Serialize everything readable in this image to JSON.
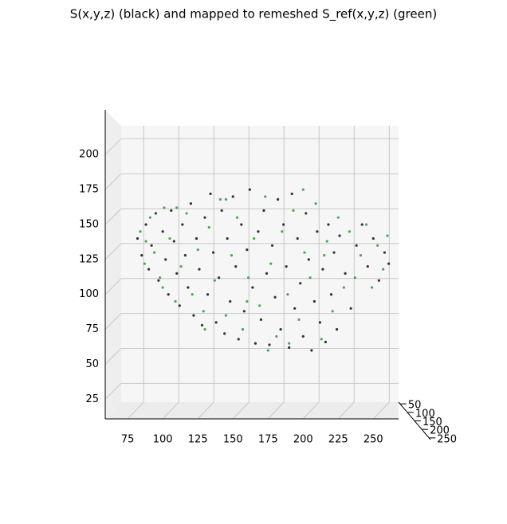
{
  "chart_data": {
    "type": "scatter3d",
    "title": "S(x,y,z) (black) and mapped to remeshed S_ref(x,y,z) (green)",
    "xlim": [
      59,
      268
    ],
    "xticks": [
      75,
      100,
      125,
      150,
      175,
      200,
      225,
      250
    ],
    "zlim": [
      11,
      232
    ],
    "zticks": [
      25,
      50,
      75,
      100,
      125,
      150,
      175,
      200
    ],
    "ylim": [
      40,
      260
    ],
    "yticks": [
      50,
      100,
      150,
      200,
      250
    ],
    "grid": true,
    "series": [
      {
        "color": "#111111",
        "x": [
          82,
          85,
          88,
          90,
          92,
          95,
          97,
          100,
          102,
          104,
          106,
          108,
          110,
          112,
          114,
          116,
          118,
          120,
          122,
          124,
          126,
          128,
          130,
          132,
          134,
          136,
          138,
          140,
          142,
          144,
          146,
          148,
          150,
          152,
          154,
          156,
          158,
          160,
          162,
          164,
          166,
          168,
          170,
          172,
          174,
          176,
          178,
          180,
          182,
          184,
          186,
          188,
          190,
          192,
          194,
          196,
          198,
          200,
          202,
          204,
          206,
          208,
          210,
          212,
          214,
          216,
          218,
          220,
          222,
          224,
          226,
          230,
          234,
          238,
          242,
          246,
          250,
          254,
          258,
          261
        ],
        "z": [
          140,
          128,
          150,
          118,
          135,
          158,
          110,
          145,
          125,
          100,
          160,
          138,
          115,
          92,
          150,
          128,
          105,
          165,
          85,
          140,
          118,
          78,
          155,
          100,
          172,
          130,
          80,
          112,
          160,
          72,
          140,
          95,
          170,
          120,
          68,
          150,
          88,
          132,
          175,
          105,
          65,
          145,
          82,
          160,
          115,
          64,
          135,
          98,
          168,
          75,
          150,
          120,
          62,
          172,
          90,
          140,
          108,
          70,
          158,
          125,
          60,
          95,
          145,
          80,
          118,
          66,
          150,
          100,
          130,
          75,
          142,
          115,
          90,
          135,
          150,
          120,
          140,
          110,
          130,
          122
        ]
      },
      {
        "color": "#2e9a2e",
        "x": [
          84,
          87,
          91,
          94,
          98,
          101,
          105,
          109,
          113,
          117,
          121,
          125,
          129,
          133,
          137,
          141,
          145,
          149,
          153,
          157,
          161,
          165,
          169,
          173,
          177,
          181,
          185,
          189,
          193,
          197,
          201,
          205,
          209,
          213,
          217,
          221,
          225,
          229,
          233,
          237,
          241,
          245,
          249,
          253,
          257,
          260,
          175,
          190,
          145,
          110,
          100,
          88,
          200,
          215,
          160,
          130
        ],
        "z": [
          145,
          122,
          155,
          130,
          112,
          162,
          140,
          95,
          120,
          158,
          100,
          132,
          88,
          148,
          110,
          168,
          85,
          128,
          155,
          75,
          112,
          140,
          92,
          170,
          122,
          70,
          145,
          100,
          160,
          82,
          130,
          112,
          165,
          68,
          138,
          88,
          155,
          105,
          145,
          112,
          128,
          150,
          105,
          135,
          118,
          142,
          60,
          65,
          168,
          162,
          105,
          138,
          175,
          128,
          95,
          75
        ]
      }
    ]
  }
}
